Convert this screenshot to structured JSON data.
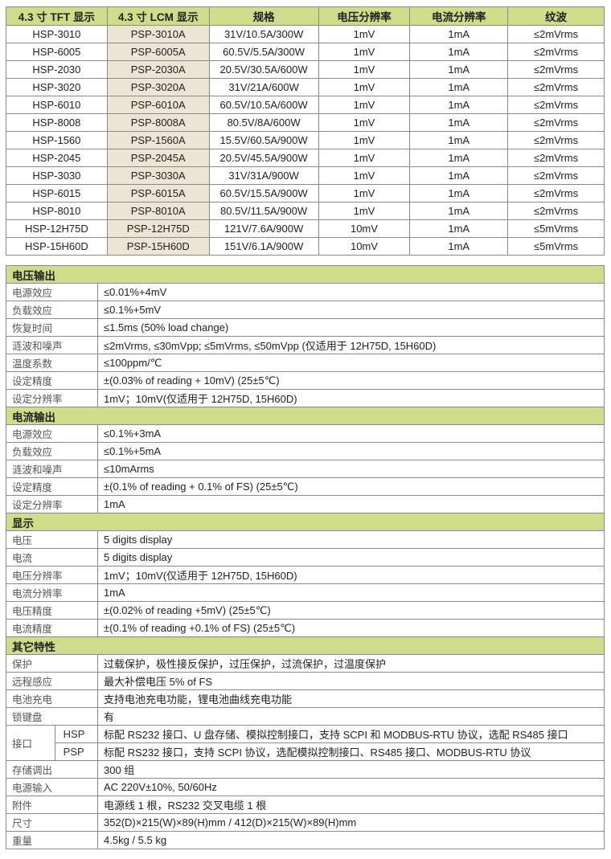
{
  "models": {
    "headers": [
      "4.3 寸 TFT 显示",
      "4.3 寸 LCM 显示",
      "规格",
      "电压分辨率",
      "电流分辨率",
      "纹波"
    ],
    "rows": [
      [
        "HSP-3010",
        "PSP-3010A",
        "31V/10.5A/300W",
        "1mV",
        "1mA",
        "≤2mVrms"
      ],
      [
        "HSP-6005",
        "PSP-6005A",
        "60.5V/5.5A/300W",
        "1mV",
        "1mA",
        "≤2mVrms"
      ],
      [
        "HSP-2030",
        "PSP-2030A",
        "20.5V/30.5A/600W",
        "1mV",
        "1mA",
        "≤2mVrms"
      ],
      [
        "HSP-3020",
        "PSP-3020A",
        "31V/21A/600W",
        "1mV",
        "1mA",
        "≤2mVrms"
      ],
      [
        "HSP-6010",
        "PSP-6010A",
        "60.5V/10.5A/600W",
        "1mV",
        "1mA",
        "≤2mVrms"
      ],
      [
        "HSP-8008",
        "PSP-8008A",
        "80.5V/8A/600W",
        "1mV",
        "1mA",
        "≤2mVrms"
      ],
      [
        "HSP-1560",
        "PSP-1560A",
        "15.5V/60.5A/900W",
        "1mV",
        "1mA",
        "≤2mVrms"
      ],
      [
        "HSP-2045",
        "PSP-2045A",
        "20.5V/45.5A/900W",
        "1mV",
        "1mA",
        "≤2mVrms"
      ],
      [
        "HSP-3030",
        "PSP-3030A",
        "31V/31A/900W",
        "1mV",
        "1mA",
        "≤2mVrms"
      ],
      [
        "HSP-6015",
        "PSP-6015A",
        "60.5V/15.5A/900W",
        "1mV",
        "1mA",
        "≤2mVrms"
      ],
      [
        "HSP-8010",
        "PSP-8010A",
        "80.5V/11.5A/900W",
        "1mV",
        "1mA",
        "≤2mVrms"
      ],
      [
        "HSP-12H75D",
        "PSP-12H75D",
        "121V/7.6A/900W",
        "10mV",
        "1mA",
        "≤5mVrms"
      ],
      [
        "HSP-15H60D",
        "PSP-15H60D",
        "151V/6.1A/900W",
        "10mV",
        "1mA",
        "≤5mVrms"
      ]
    ]
  },
  "sections": [
    {
      "title": "电压输出",
      "rows": [
        [
          "电源效应",
          "≤0.01%+4mV"
        ],
        [
          "负载效应",
          "≤0.1%+5mV"
        ],
        [
          "恢复时间",
          "≤1.5ms (50% load change)"
        ],
        [
          "涟波和噪声",
          "≤2mVrms, ≤30mVpp; ≤5mVrms, ≤50mVpp (仅适用于 12H75D, 15H60D)"
        ],
        [
          "温度系数",
          "≤100ppm/℃"
        ],
        [
          "设定精度",
          "±(0.03% of reading + 10mV) (25±5℃)"
        ],
        [
          "设定分辨率",
          "1mV；10mV(仅适用于 12H75D, 15H60D)"
        ]
      ]
    },
    {
      "title": "电流输出",
      "rows": [
        [
          "电源效应",
          "≤0.1%+3mA"
        ],
        [
          "负载效应",
          "≤0.1%+5mA"
        ],
        [
          "涟波和噪声",
          "≤10mArms"
        ],
        [
          "设定精度",
          "±(0.1% of reading + 0.1% of FS) (25±5℃)"
        ],
        [
          "设定分辨率",
          "1mA"
        ]
      ]
    },
    {
      "title": "显示",
      "rows": [
        [
          "电压",
          "5 digits display"
        ],
        [
          "电流",
          "5 digits display"
        ],
        [
          "电压分辨率",
          "1mV；10mV(仅适用于 12H75D, 15H60D)"
        ],
        [
          "电流分辨率",
          "1mA"
        ],
        [
          "电压精度",
          "±(0.02% of reading +5mV) (25±5℃)"
        ],
        [
          "电流精度",
          "±(0.1% of reading +0.1% of FS) (25±5℃)"
        ]
      ]
    },
    {
      "title": "其它特性",
      "rows": [
        [
          "保护",
          "过载保护，极性接反保护，过压保护，过流保护，过温度保护"
        ],
        [
          "远程感应",
          "最大补偿电压 5% of FS"
        ],
        [
          "电池充电",
          "支持电池充电功能，锂电池曲线充电功能"
        ],
        [
          "锁键盘",
          "有"
        ]
      ],
      "interface": {
        "label": "接口",
        "rows": [
          [
            "HSP",
            "标配 RS232 接口、U 盘存储、模拟控制接口，支持 SCPI 和 MODBUS-RTU 协议，选配 RS485 接口"
          ],
          [
            "PSP",
            "标配 RS232 接口，支持 SCPI 协议，选配模拟控制接口、RS485 接口、MODBUS-RTU 协议"
          ]
        ]
      },
      "rows_after": [
        [
          "存储调出",
          "300 组"
        ],
        [
          "电源输入",
          "AC 220V±10%, 50/60Hz"
        ],
        [
          "附件",
          "电源线 1 根，RS232 交叉电缆 1 根"
        ],
        [
          "尺寸",
          "352(D)×215(W)×89(H)mm / 412(D)×215(W)×89(H)mm"
        ],
        [
          "重量",
          "4.5kg / 5.5 kg"
        ]
      ]
    }
  ],
  "colors": {
    "header_bg": "#cfdc8a",
    "lcm_column_bg": "#ece5d6"
  }
}
